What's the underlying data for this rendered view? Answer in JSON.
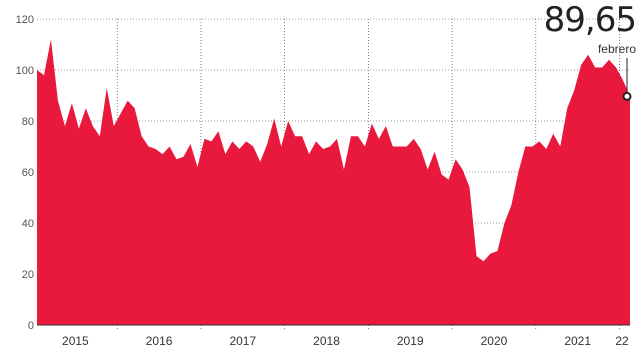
{
  "chart_data": {
    "type": "area",
    "title": "",
    "xlabel": "",
    "ylabel": "",
    "ylim": [
      0,
      120
    ],
    "yticks": [
      "0",
      "20",
      "40",
      "60",
      "80",
      "100",
      "120"
    ],
    "xticks": [
      "2015",
      "2016",
      "2017",
      "2018",
      "2019",
      "2020",
      "2021",
      "22"
    ],
    "grid": true,
    "fill_color": "#e8193c",
    "annotation": {
      "value": "89,65",
      "label": "febrero"
    },
    "x": [
      "2015-01",
      "2015-02",
      "2015-03",
      "2015-04",
      "2015-05",
      "2015-06",
      "2015-07",
      "2015-08",
      "2015-09",
      "2015-10",
      "2015-11",
      "2015-12",
      "2016-01",
      "2016-02",
      "2016-03",
      "2016-04",
      "2016-05",
      "2016-06",
      "2016-07",
      "2016-08",
      "2016-09",
      "2016-10",
      "2016-11",
      "2016-12",
      "2017-01",
      "2017-02",
      "2017-03",
      "2017-04",
      "2017-05",
      "2017-06",
      "2017-07",
      "2017-08",
      "2017-09",
      "2017-10",
      "2017-11",
      "2017-12",
      "2018-01",
      "2018-02",
      "2018-03",
      "2018-04",
      "2018-05",
      "2018-06",
      "2018-07",
      "2018-08",
      "2018-09",
      "2018-10",
      "2018-11",
      "2018-12",
      "2019-01",
      "2019-02",
      "2019-03",
      "2019-04",
      "2019-05",
      "2019-06",
      "2019-07",
      "2019-08",
      "2019-09",
      "2019-10",
      "2019-11",
      "2019-12",
      "2020-01",
      "2020-02",
      "2020-03",
      "2020-04",
      "2020-05",
      "2020-06",
      "2020-07",
      "2020-08",
      "2020-09",
      "2020-10",
      "2020-11",
      "2020-12",
      "2021-01",
      "2021-02",
      "2021-03",
      "2021-04",
      "2021-05",
      "2021-06",
      "2021-07",
      "2021-08",
      "2021-09",
      "2021-10",
      "2021-11",
      "2021-12",
      "2022-01",
      "2022-02"
    ],
    "values": [
      100,
      98,
      112,
      88,
      78,
      87,
      77,
      85,
      78,
      74,
      93,
      78,
      83,
      88,
      85,
      74,
      70,
      69,
      67,
      70,
      65,
      66,
      71,
      62,
      73,
      72,
      76,
      67,
      72,
      69,
      72,
      70,
      64,
      71,
      81,
      70,
      80,
      74,
      74,
      67,
      72,
      69,
      70,
      73,
      61,
      74,
      74,
      70,
      79,
      73,
      78,
      70,
      70,
      70,
      73,
      69,
      61,
      68,
      59,
      57,
      65,
      61,
      54,
      27,
      25,
      28,
      29,
      40,
      47,
      60,
      70,
      70,
      72,
      69,
      75,
      70,
      85,
      92,
      102,
      106,
      101,
      101,
      104,
      101,
      96,
      89.65
    ]
  }
}
